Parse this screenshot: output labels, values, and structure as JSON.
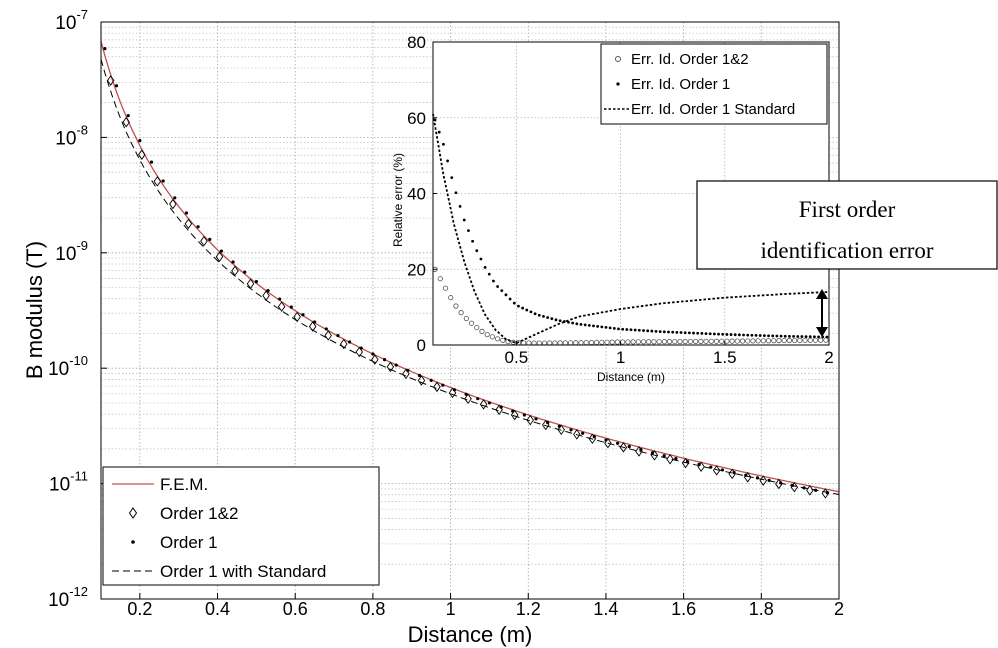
{
  "chart_data": [
    {
      "type": "line",
      "title": "",
      "xlabel": "Distance (m)",
      "ylabel": "B modulus (T)",
      "xlim": [
        0.1,
        2
      ],
      "ylim": [
        1e-12,
        1e-07
      ],
      "yscale": "log",
      "grid": true,
      "minor_grid_y": true,
      "legend_position": "bottom-left",
      "x_ticks": [
        0.2,
        0.4,
        0.6,
        0.8,
        1,
        1.2,
        1.4,
        1.6,
        1.8,
        2
      ],
      "x_tick_labels": [
        "0.2",
        "0.4",
        "0.6",
        "0.8",
        "1",
        "1.2",
        "1.4",
        "1.6",
        "1.8",
        "2"
      ],
      "y_ticks": [
        {
          "value": 1e-12,
          "base": "10",
          "exp": "-12"
        },
        {
          "value": 1e-11,
          "base": "10",
          "exp": "-11"
        },
        {
          "value": 1e-10,
          "base": "10",
          "exp": "-10"
        },
        {
          "value": 1e-09,
          "base": "10",
          "exp": "-9"
        },
        {
          "value": 1e-08,
          "base": "10",
          "exp": "-8"
        },
        {
          "value": 1e-07,
          "base": "10",
          "exp": "-7"
        }
      ],
      "series": [
        {
          "name": "F.E.M.",
          "style": "line",
          "color": "#c0504d",
          "model": {
            "A": 6.8e-11,
            "n": 3.0
          }
        },
        {
          "name": "Order 1&2",
          "style": "diamond",
          "color": "#000000",
          "model": {
            "A": 6.2e-11,
            "n": 2.99
          }
        },
        {
          "name": "Order 1",
          "style": "dot",
          "color": "#000000",
          "model": {
            "A": 6.7e-11,
            "n": 3.07
          }
        },
        {
          "name": "Order 1 with Standard",
          "style": "dashed",
          "color": "#000000",
          "model": {
            "A": 6e-11,
            "n": 2.9
          }
        }
      ]
    },
    {
      "type": "line",
      "title": "",
      "xlabel": "Distance (m)",
      "ylabel": "Relative error (%)",
      "xlim": [
        0.1,
        2
      ],
      "ylim": [
        0,
        80
      ],
      "grid": true,
      "legend_position": "top-right",
      "x_ticks": [
        0.5,
        1,
        1.5,
        2
      ],
      "x_tick_labels": [
        "0.5",
        "1",
        "1.5",
        "2"
      ],
      "y_ticks": [
        0,
        20,
        40,
        60,
        80
      ],
      "y_tick_labels": [
        "0",
        "20",
        "40",
        "60",
        "80"
      ],
      "series": [
        {
          "name": "Err. Id. Order 1&2",
          "style": "circle",
          "color": "#555555",
          "x": [
            0.1,
            0.15,
            0.2,
            0.25,
            0.3,
            0.35,
            0.4,
            0.45,
            0.5,
            0.6,
            0.8,
            1.0,
            1.5,
            2.0
          ],
          "y": [
            21,
            16,
            11,
            7.5,
            5,
            3,
            1.8,
            1,
            0.6,
            0.5,
            0.6,
            0.8,
            1,
            1.3
          ]
        },
        {
          "name": "Err. Id. Order 1",
          "style": "dot",
          "color": "#000000",
          "x": [
            0.1,
            0.15,
            0.2,
            0.25,
            0.3,
            0.35,
            0.4,
            0.5,
            0.6,
            0.7,
            0.8,
            1.0,
            1.2,
            1.5,
            1.8,
            2.0
          ],
          "y": [
            61,
            53,
            42,
            33,
            26,
            20.5,
            16,
            10.5,
            8,
            6.5,
            5.5,
            4.2,
            3.5,
            2.8,
            2.3,
            2.1
          ]
        },
        {
          "name": "Err. Id. Order 1 Standard",
          "style": "dashed",
          "color": "#000000",
          "x": [
            0.1,
            0.15,
            0.2,
            0.25,
            0.3,
            0.35,
            0.4,
            0.45,
            0.5,
            0.6,
            0.7,
            0.8,
            1.0,
            1.2,
            1.5,
            1.8,
            2.0
          ],
          "y": [
            61,
            45,
            32,
            22,
            14,
            8,
            4,
            1.5,
            0.5,
            3,
            5.5,
            7.5,
            9.5,
            11,
            12.5,
            13.5,
            14
          ]
        }
      ]
    }
  ],
  "callout": {
    "lines": [
      "First order",
      "identification error"
    ]
  }
}
